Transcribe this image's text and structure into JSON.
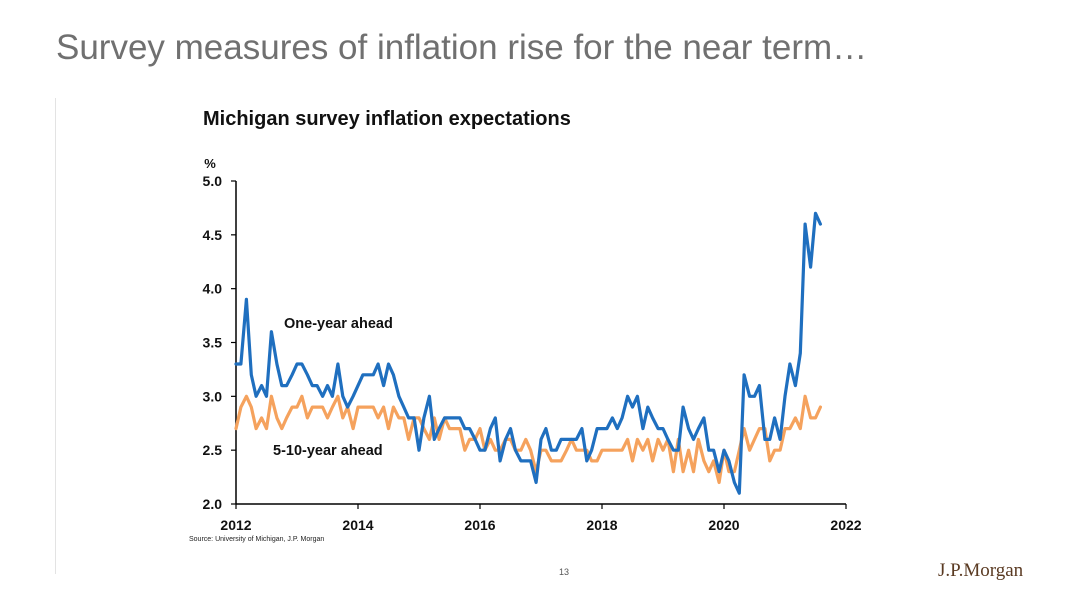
{
  "slide": {
    "title": "Survey measures of inflation rise for the near term…",
    "page_number": "13",
    "logo_text": "J.P.Morgan"
  },
  "colors": {
    "one_year": "#1f6fbf",
    "five_ten_year": "#f5a25d",
    "axis": "#000000"
  },
  "chart_data": {
    "type": "line",
    "title": "Michigan survey inflation expectations",
    "ylabel": "%",
    "xlabel": "",
    "ylim": [
      2.0,
      5.0
    ],
    "xlim": [
      2012,
      2022
    ],
    "yticks": [
      "2.0",
      "2.5",
      "3.0",
      "3.5",
      "4.0",
      "4.5",
      "5.0"
    ],
    "xticks": [
      "2012",
      "2014",
      "2016",
      "2018",
      "2020",
      "2022"
    ],
    "source": "Source: University of Michigan, J.P. Morgan",
    "annotations": [
      {
        "text": "One-year ahead",
        "series": "one_year"
      },
      {
        "text": "5-10-year ahead",
        "series": "five_ten_year"
      }
    ],
    "series": [
      {
        "key": "one_year",
        "x": [
          2012.0,
          2012.08,
          2012.17,
          2012.25,
          2012.33,
          2012.42,
          2012.5,
          2012.58,
          2012.67,
          2012.75,
          2012.83,
          2012.92,
          2013.0,
          2013.08,
          2013.17,
          2013.25,
          2013.33,
          2013.42,
          2013.5,
          2013.58,
          2013.67,
          2013.75,
          2013.83,
          2013.92,
          2014.0,
          2014.08,
          2014.17,
          2014.25,
          2014.33,
          2014.42,
          2014.5,
          2014.58,
          2014.67,
          2014.75,
          2014.83,
          2014.92,
          2015.0,
          2015.08,
          2015.17,
          2015.25,
          2015.33,
          2015.42,
          2015.5,
          2015.58,
          2015.67,
          2015.75,
          2015.83,
          2015.92,
          2016.0,
          2016.08,
          2016.17,
          2016.25,
          2016.33,
          2016.42,
          2016.5,
          2016.58,
          2016.67,
          2016.75,
          2016.83,
          2016.92,
          2017.0,
          2017.08,
          2017.17,
          2017.25,
          2017.33,
          2017.42,
          2017.5,
          2017.58,
          2017.67,
          2017.75,
          2017.83,
          2017.92,
          2018.0,
          2018.08,
          2018.17,
          2018.25,
          2018.33,
          2018.42,
          2018.5,
          2018.58,
          2018.67,
          2018.75,
          2018.83,
          2018.92,
          2019.0,
          2019.08,
          2019.17,
          2019.25,
          2019.33,
          2019.42,
          2019.5,
          2019.58,
          2019.67,
          2019.75,
          2019.83,
          2019.92,
          2020.0,
          2020.08,
          2020.17,
          2020.25,
          2020.33,
          2020.42,
          2020.5,
          2020.58,
          2020.67,
          2020.75,
          2020.83,
          2020.92,
          2021.0,
          2021.08,
          2021.17,
          2021.25,
          2021.33,
          2021.42,
          2021.5,
          2021.58
        ],
        "values": [
          3.3,
          3.3,
          3.9,
          3.2,
          3.0,
          3.1,
          3.0,
          3.6,
          3.3,
          3.1,
          3.1,
          3.2,
          3.3,
          3.3,
          3.2,
          3.1,
          3.1,
          3.0,
          3.1,
          3.0,
          3.3,
          3.0,
          2.9,
          3.0,
          3.1,
          3.2,
          3.2,
          3.2,
          3.3,
          3.1,
          3.3,
          3.2,
          3.0,
          2.9,
          2.8,
          2.8,
          2.5,
          2.8,
          3.0,
          2.6,
          2.7,
          2.8,
          2.8,
          2.8,
          2.8,
          2.7,
          2.7,
          2.6,
          2.5,
          2.5,
          2.7,
          2.8,
          2.4,
          2.6,
          2.7,
          2.5,
          2.4,
          2.4,
          2.4,
          2.2,
          2.6,
          2.7,
          2.5,
          2.5,
          2.6,
          2.6,
          2.6,
          2.6,
          2.7,
          2.4,
          2.5,
          2.7,
          2.7,
          2.7,
          2.8,
          2.7,
          2.8,
          3.0,
          2.9,
          3.0,
          2.7,
          2.9,
          2.8,
          2.7,
          2.7,
          2.6,
          2.5,
          2.5,
          2.9,
          2.7,
          2.6,
          2.7,
          2.8,
          2.5,
          2.5,
          2.3,
          2.5,
          2.4,
          2.2,
          2.1,
          3.2,
          3.0,
          3.0,
          3.1,
          2.6,
          2.6,
          2.8,
          2.6,
          3.0,
          3.3,
          3.1,
          3.4,
          4.6,
          4.2,
          4.7,
          4.6
        ]
      },
      {
        "key": "five_ten_year",
        "x": [
          2012.0,
          2012.08,
          2012.17,
          2012.25,
          2012.33,
          2012.42,
          2012.5,
          2012.58,
          2012.67,
          2012.75,
          2012.83,
          2012.92,
          2013.0,
          2013.08,
          2013.17,
          2013.25,
          2013.33,
          2013.42,
          2013.5,
          2013.58,
          2013.67,
          2013.75,
          2013.83,
          2013.92,
          2014.0,
          2014.08,
          2014.17,
          2014.25,
          2014.33,
          2014.42,
          2014.5,
          2014.58,
          2014.67,
          2014.75,
          2014.83,
          2014.92,
          2015.0,
          2015.08,
          2015.17,
          2015.25,
          2015.33,
          2015.42,
          2015.5,
          2015.58,
          2015.67,
          2015.75,
          2015.83,
          2015.92,
          2016.0,
          2016.08,
          2016.17,
          2016.25,
          2016.33,
          2016.42,
          2016.5,
          2016.58,
          2016.67,
          2016.75,
          2016.83,
          2016.92,
          2017.0,
          2017.08,
          2017.17,
          2017.25,
          2017.33,
          2017.42,
          2017.5,
          2017.58,
          2017.67,
          2017.75,
          2017.83,
          2017.92,
          2018.0,
          2018.08,
          2018.17,
          2018.25,
          2018.33,
          2018.42,
          2018.5,
          2018.58,
          2018.67,
          2018.75,
          2018.83,
          2018.92,
          2019.0,
          2019.08,
          2019.17,
          2019.25,
          2019.33,
          2019.42,
          2019.5,
          2019.58,
          2019.67,
          2019.75,
          2019.83,
          2019.92,
          2020.0,
          2020.08,
          2020.17,
          2020.25,
          2020.33,
          2020.42,
          2020.5,
          2020.58,
          2020.67,
          2020.75,
          2020.83,
          2020.92,
          2021.0,
          2021.08,
          2021.17,
          2021.25,
          2021.33,
          2021.42,
          2021.5,
          2021.58
        ],
        "values": [
          2.7,
          2.9,
          3.0,
          2.9,
          2.7,
          2.8,
          2.7,
          3.0,
          2.8,
          2.7,
          2.8,
          2.9,
          2.9,
          3.0,
          2.8,
          2.9,
          2.9,
          2.9,
          2.8,
          2.9,
          3.0,
          2.8,
          2.9,
          2.7,
          2.9,
          2.9,
          2.9,
          2.9,
          2.8,
          2.9,
          2.7,
          2.9,
          2.8,
          2.8,
          2.6,
          2.8,
          2.8,
          2.7,
          2.6,
          2.8,
          2.6,
          2.8,
          2.7,
          2.7,
          2.7,
          2.5,
          2.6,
          2.6,
          2.7,
          2.5,
          2.6,
          2.5,
          2.5,
          2.6,
          2.6,
          2.5,
          2.5,
          2.6,
          2.5,
          2.3,
          2.5,
          2.5,
          2.4,
          2.4,
          2.4,
          2.5,
          2.6,
          2.5,
          2.5,
          2.5,
          2.4,
          2.4,
          2.5,
          2.5,
          2.5,
          2.5,
          2.5,
          2.6,
          2.4,
          2.6,
          2.5,
          2.6,
          2.4,
          2.6,
          2.5,
          2.6,
          2.3,
          2.6,
          2.3,
          2.5,
          2.3,
          2.6,
          2.4,
          2.3,
          2.4,
          2.2,
          2.5,
          2.3,
          2.3,
          2.5,
          2.7,
          2.5,
          2.6,
          2.7,
          2.7,
          2.4,
          2.5,
          2.5,
          2.7,
          2.7,
          2.8,
          2.7,
          3.0,
          2.8,
          2.8,
          2.9
        ]
      }
    ]
  }
}
